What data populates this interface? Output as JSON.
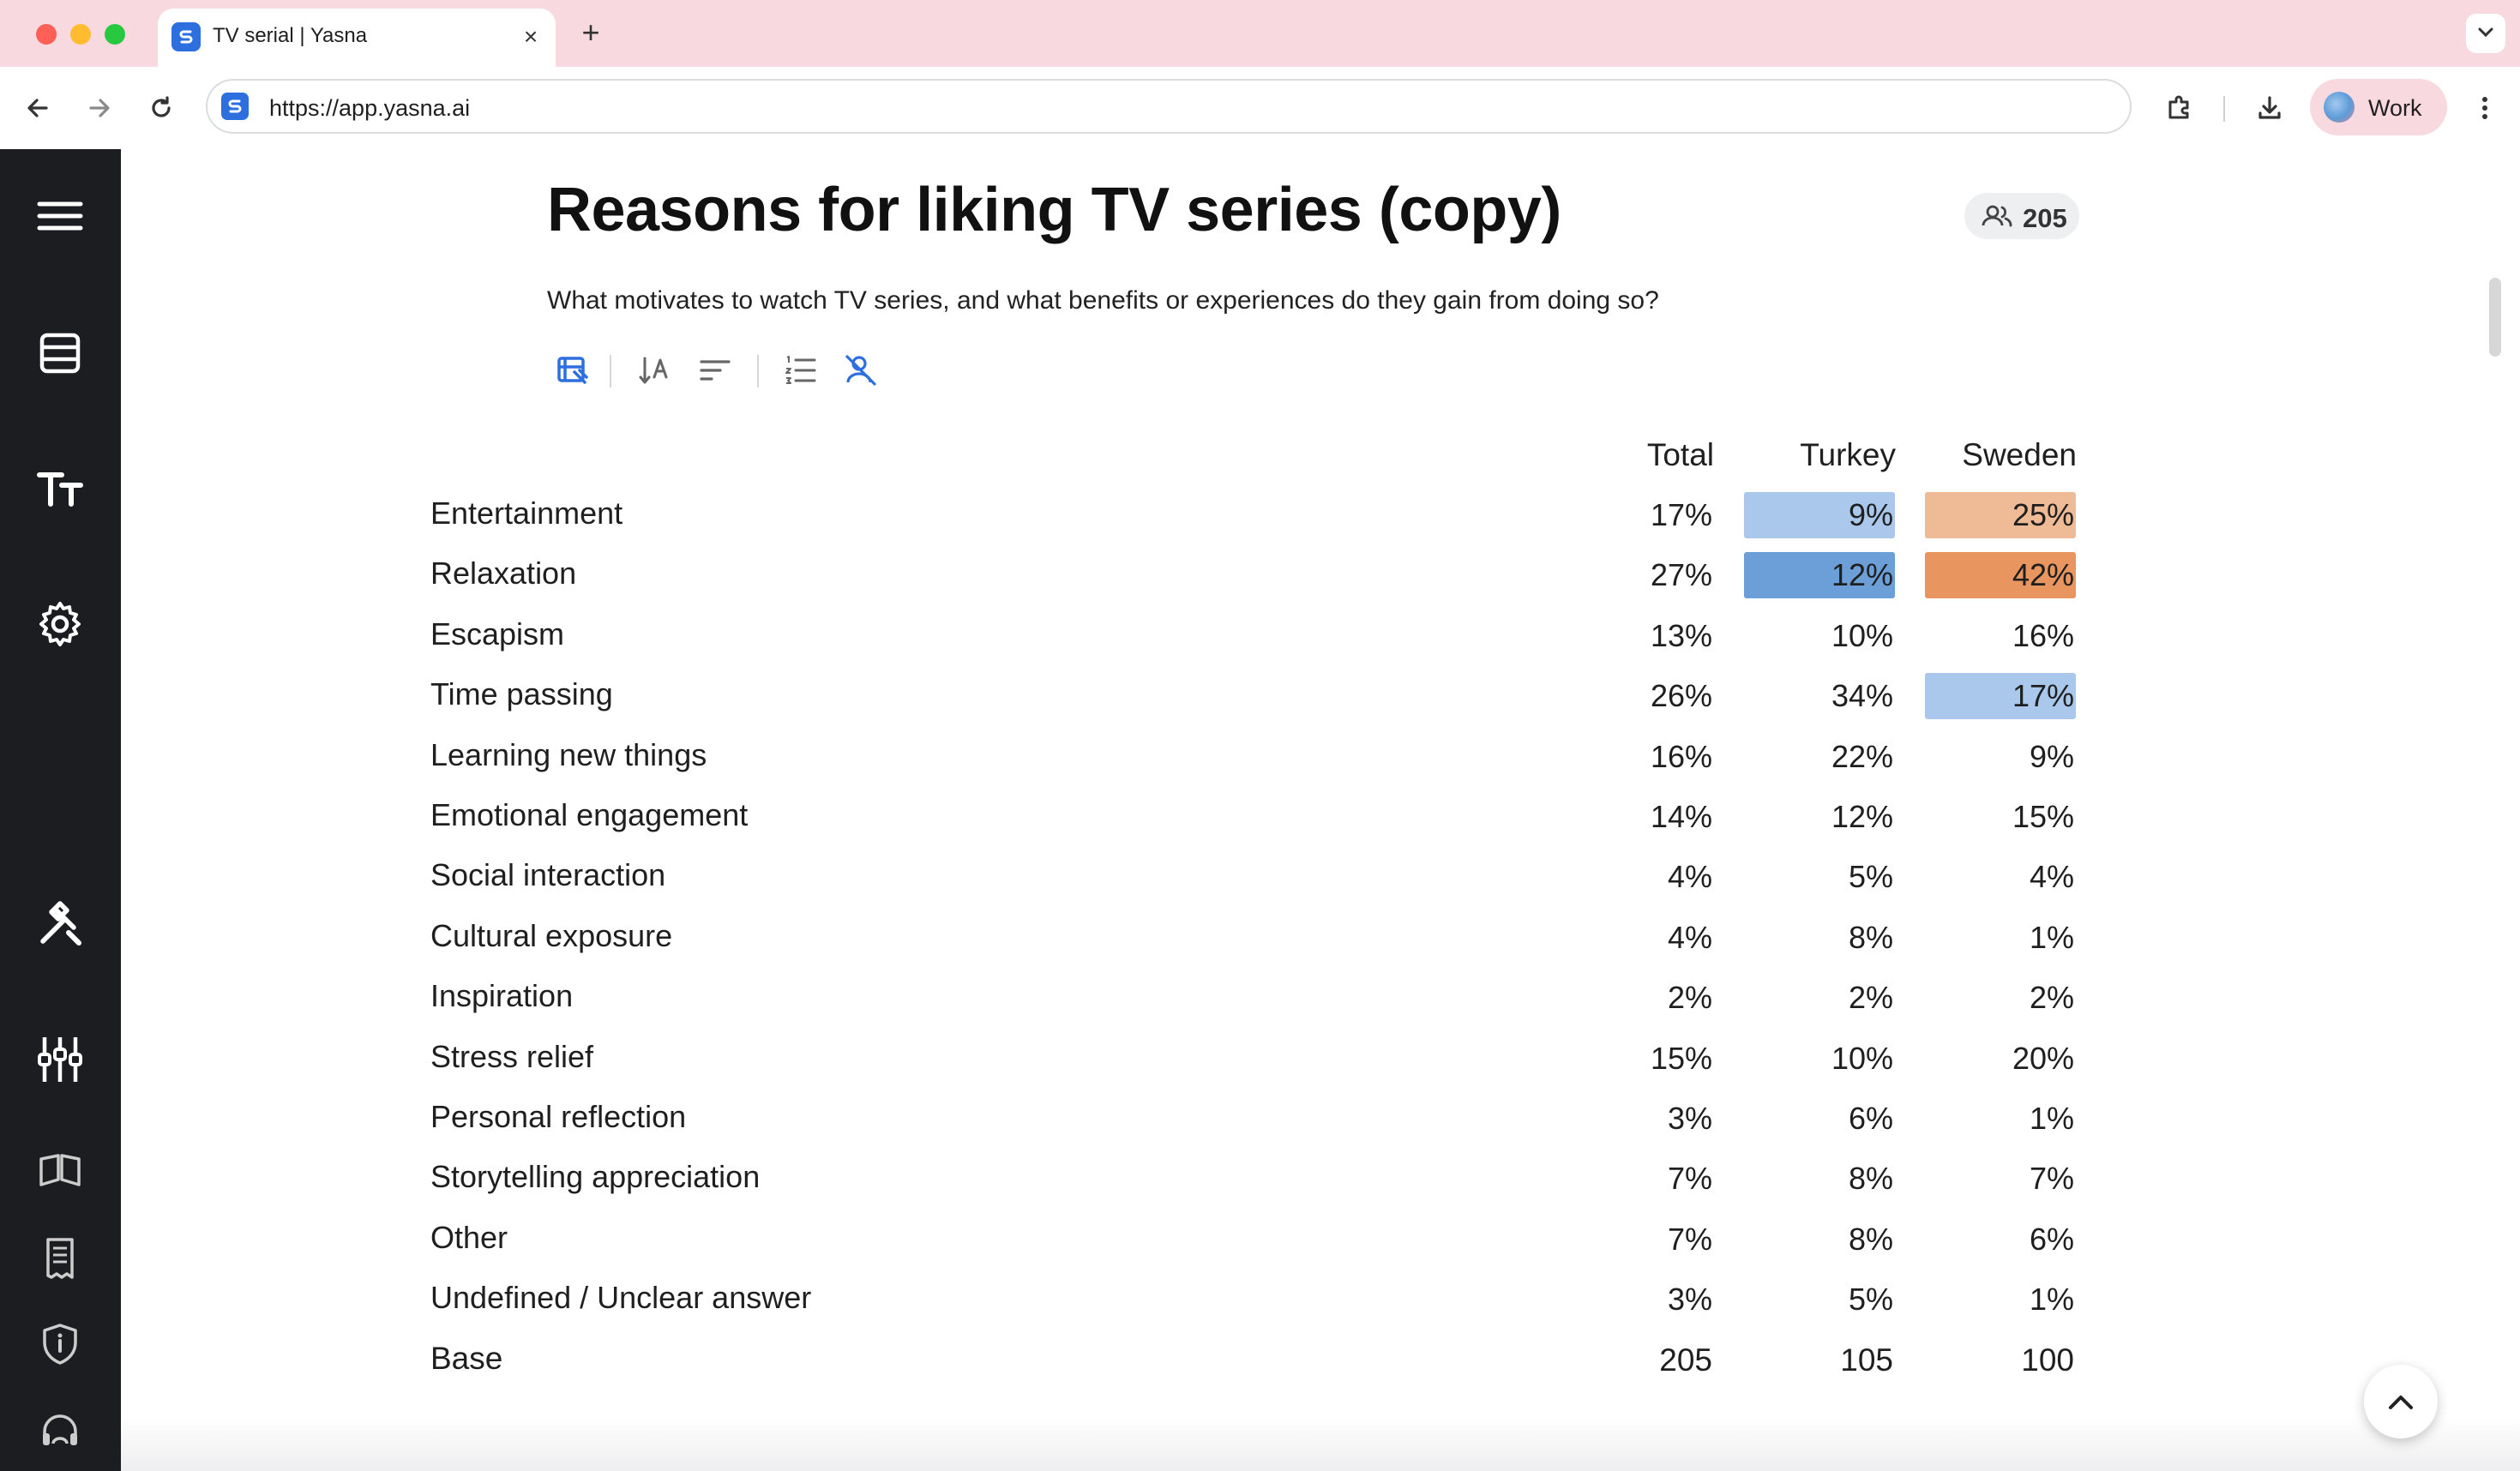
{
  "browser": {
    "tab_title": "TV serial | Yasna",
    "url": "https://app.yasna.ai",
    "profile_label": "Work",
    "icons": [
      "back-icon",
      "forward-icon",
      "reload-icon",
      "extensions-icon",
      "download-icon",
      "kebab-menu-icon",
      "tab-search-icon"
    ]
  },
  "sidebar": {
    "icons": [
      "hamburger-menu-icon",
      "table-icon",
      "text-size-icon",
      "settings-gear-icon",
      "tools-icon",
      "filters-icon",
      "book-icon",
      "receipt-icon",
      "shield-info-icon",
      "support-headset-icon"
    ]
  },
  "page": {
    "title": "Reasons for liking TV series (copy)",
    "respondents_count": "205",
    "subtitle": "What motivates to watch TV series, and what benefits or experiences do they gain from doing so?",
    "tool_icons": [
      "chart-edit-icon",
      "sort-alpha-icon",
      "sort-lines-icon",
      "numbered-list-icon",
      "hide-respondents-icon"
    ]
  },
  "colors": {
    "turkey_light": "#a9c8ec",
    "turkey_strong": "#6c9fd7",
    "sweden_light": "#eebb96",
    "sweden_strong": "#e9955f",
    "accent": "#2e6fe0"
  },
  "table": {
    "columns": [
      "Total",
      "Turkey",
      "Sweden"
    ],
    "rows": [
      {
        "label": "Entertainment",
        "total": "17%",
        "turkey": "9%",
        "sweden": "25%",
        "turkey_highlight": "light",
        "sweden_highlight": "light"
      },
      {
        "label": "Relaxation",
        "total": "27%",
        "turkey": "12%",
        "sweden": "42%",
        "turkey_highlight": "strong",
        "sweden_highlight": "strong"
      },
      {
        "label": "Escapism",
        "total": "13%",
        "turkey": "10%",
        "sweden": "16%"
      },
      {
        "label": "Time passing",
        "total": "26%",
        "turkey": "34%",
        "sweden": "17%",
        "sweden_highlight": "light_blue"
      },
      {
        "label": "Learning new things",
        "total": "16%",
        "turkey": "22%",
        "sweden": "9%"
      },
      {
        "label": "Emotional engagement",
        "total": "14%",
        "turkey": "12%",
        "sweden": "15%"
      },
      {
        "label": "Social interaction",
        "total": "4%",
        "turkey": "5%",
        "sweden": "4%"
      },
      {
        "label": "Cultural exposure",
        "total": "4%",
        "turkey": "8%",
        "sweden": "1%"
      },
      {
        "label": "Inspiration",
        "total": "2%",
        "turkey": "2%",
        "sweden": "2%"
      },
      {
        "label": "Stress relief",
        "total": "15%",
        "turkey": "10%",
        "sweden": "20%"
      },
      {
        "label": "Personal reflection",
        "total": "3%",
        "turkey": "6%",
        "sweden": "1%"
      },
      {
        "label": "Storytelling appreciation",
        "total": "7%",
        "turkey": "8%",
        "sweden": "7%"
      },
      {
        "label": "Other",
        "total": "7%",
        "turkey": "8%",
        "sweden": "6%"
      },
      {
        "label": "Undefined / Unclear answer",
        "total": "3%",
        "turkey": "5%",
        "sweden": "1%"
      }
    ],
    "base": {
      "label": "Base",
      "total": "205",
      "turkey": "105",
      "sweden": "100"
    }
  }
}
